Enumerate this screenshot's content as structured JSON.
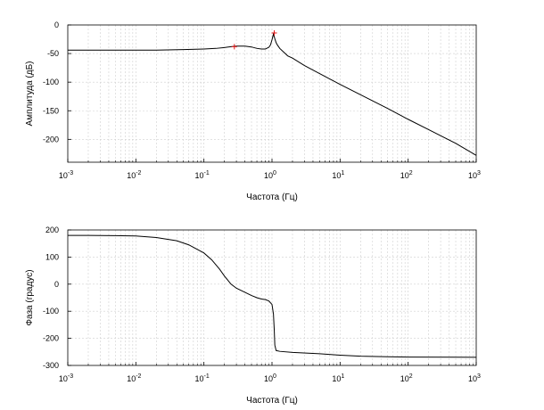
{
  "chart_data": [
    {
      "type": "line",
      "xscale": "log",
      "xlabel": "Частота (Гц)",
      "ylabel": "Амплитуда (дБ)",
      "xlim": [
        0.001,
        1000
      ],
      "ylim": [
        -240,
        0
      ],
      "x_tick_labels": [
        {
          "base": "10",
          "exp": "-3"
        },
        {
          "base": "10",
          "exp": "-2"
        },
        {
          "base": "10",
          "exp": "-1"
        },
        {
          "base": "10",
          "exp": "0"
        },
        {
          "base": "10",
          "exp": "1"
        },
        {
          "base": "10",
          "exp": "2"
        },
        {
          "base": "10",
          "exp": "3"
        }
      ],
      "y_ticks": [
        0,
        -50,
        -100,
        -150,
        -200
      ],
      "y_tick_labels": [
        "0",
        "-50",
        "-100",
        "-150",
        "-200"
      ],
      "grid": true,
      "series": [
        {
          "color": "#000000",
          "x": [
            0.001,
            0.003,
            0.01,
            0.02,
            0.05,
            0.1,
            0.15,
            0.2,
            0.25,
            0.3,
            0.4,
            0.5,
            0.6,
            0.7,
            0.8,
            0.9,
            0.95,
            1.0,
            1.05,
            1.1,
            1.15,
            1.2,
            1.3,
            1.5,
            1.7,
            2,
            3,
            5,
            10,
            20,
            50,
            100,
            200,
            500,
            1000
          ],
          "y": [
            -44,
            -44,
            -44,
            -44,
            -43,
            -42,
            -41,
            -39.5,
            -38,
            -37,
            -37,
            -38.5,
            -41,
            -42,
            -42,
            -39,
            -35,
            -26,
            -16,
            -24,
            -31,
            -35,
            -41,
            -48,
            -54,
            -58,
            -71,
            -85,
            -104,
            -122,
            -146,
            -165,
            -183,
            -207,
            -228
          ]
        }
      ],
      "markers": [
        {
          "x": 0.28,
          "y": -38,
          "color": "#e01818"
        },
        {
          "x": 1.08,
          "y": -14,
          "color": "#e01818"
        }
      ]
    },
    {
      "type": "line",
      "xscale": "log",
      "xlabel": "Частота (Гц)",
      "ylabel": "Фаза (градус)",
      "xlim": [
        0.001,
        1000
      ],
      "ylim": [
        -300,
        200
      ],
      "x_tick_labels": [
        {
          "base": "10",
          "exp": "-3"
        },
        {
          "base": "10",
          "exp": "-2"
        },
        {
          "base": "10",
          "exp": "-1"
        },
        {
          "base": "10",
          "exp": "0"
        },
        {
          "base": "10",
          "exp": "1"
        },
        {
          "base": "10",
          "exp": "2"
        },
        {
          "base": "10",
          "exp": "3"
        }
      ],
      "y_ticks": [
        200,
        100,
        0,
        -100,
        -200,
        -300
      ],
      "y_tick_labels": [
        "200",
        "100",
        "0",
        "-100",
        "-200",
        "-300"
      ],
      "grid": true,
      "series": [
        {
          "color": "#000000",
          "x": [
            0.001,
            0.002,
            0.005,
            0.01,
            0.02,
            0.04,
            0.06,
            0.1,
            0.13,
            0.17,
            0.2,
            0.25,
            0.3,
            0.4,
            0.5,
            0.6,
            0.7,
            0.8,
            0.9,
            1.0,
            1.05,
            1.08,
            1.1,
            1.15,
            1.3,
            2,
            5,
            10,
            20,
            50,
            100,
            1000
          ],
          "y": [
            180,
            180,
            179,
            178,
            172,
            160,
            145,
            115,
            90,
            55,
            30,
            0,
            -15,
            -30,
            -42,
            -50,
            -55,
            -57,
            -62,
            -75,
            -110,
            -170,
            -225,
            -245,
            -248,
            -252,
            -257,
            -262,
            -266,
            -268,
            -269,
            -270
          ]
        }
      ]
    }
  ]
}
